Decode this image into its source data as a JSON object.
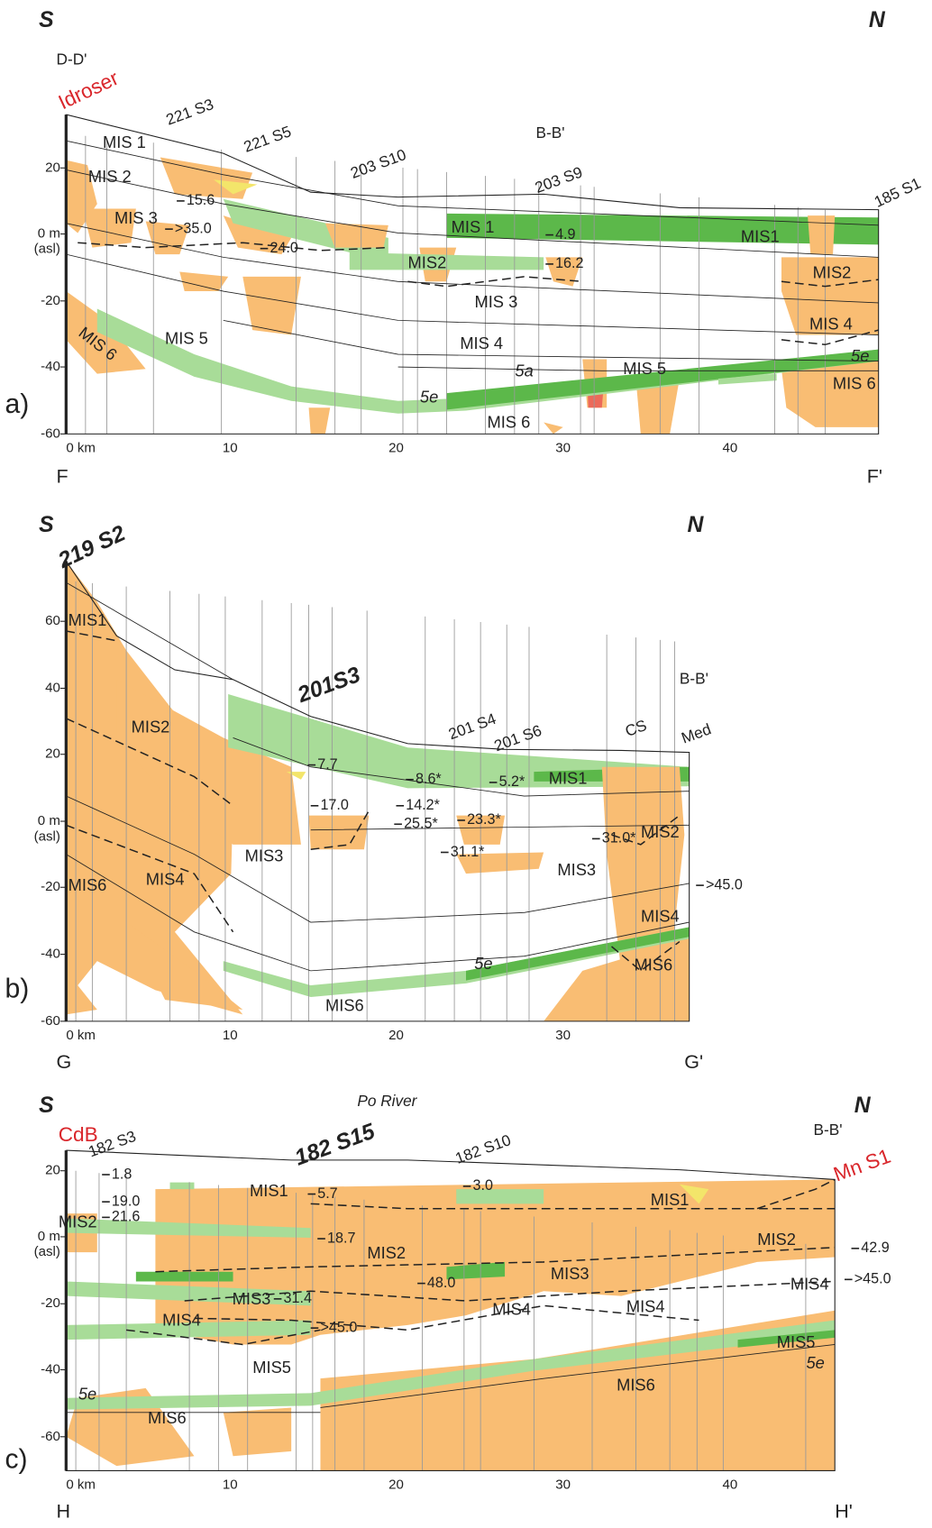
{
  "panels": [
    {
      "panel_label": "a)",
      "left": "S",
      "right": "N",
      "start": "F",
      "end": "F'",
      "y_axis": [
        "20",
        "0 m",
        "-20",
        "-40",
        "-60"
      ],
      "asl": "(asl)",
      "x_axis": [
        "0 km",
        "10",
        "20",
        "30",
        "40"
      ],
      "wells": [
        "D-D'",
        "Idroser",
        "221 S3",
        "221 S5",
        "203 S10",
        "B-B'",
        "203 S9",
        "185 S1"
      ],
      "units": [
        "MIS 1",
        "MIS 2",
        "MIS 3",
        "MIS 1",
        "MIS1",
        "MIS2",
        "MIS2",
        "MIS 3",
        "MIS 4",
        "MIS 5",
        "MIS 4",
        "MIS 6",
        "5a",
        "MIS 5",
        "5e",
        "MIS 6",
        "5e",
        "MIS 6"
      ],
      "depths": [
        "15.6",
        ">35.0",
        "24.0",
        "4.9",
        "16.2"
      ]
    },
    {
      "panel_label": "b)",
      "left": "S",
      "right": "N",
      "start": "G",
      "end": "G'",
      "y_axis": [
        "60",
        "40",
        "20",
        "0 m",
        "-20",
        "-40",
        "-60"
      ],
      "asl": "(asl)",
      "x_axis": [
        "0 km",
        "10",
        "20",
        "30"
      ],
      "wells": [
        "219 S2",
        "201S3",
        "201 S4",
        "201 S6",
        "CS",
        "B-B'",
        "Med"
      ],
      "units": [
        "MIS1",
        "MIS2",
        "MIS1",
        "MIS3",
        "MIS2",
        "MIS3",
        "MIS6",
        "MIS4",
        "MIS4",
        "5e",
        "MIS6",
        "MIS6"
      ],
      "depths": [
        "7.7",
        "17.0",
        "8.6*",
        "5.2*",
        "14.2*",
        "25.5*",
        "23.3*",
        "31.1*",
        "31.0*",
        ">45.0"
      ]
    },
    {
      "panel_label": "c)",
      "left": "S",
      "right": "N",
      "start": "H",
      "end": "H'",
      "y_axis": [
        "20",
        "0 m",
        "-20",
        "-40",
        "-60"
      ],
      "asl": "(asl)",
      "x_axis": [
        "0 km",
        "10",
        "20",
        "30",
        "40"
      ],
      "wells": [
        "CdB",
        "182 S3",
        "Po River",
        "182 S15",
        "182 S10",
        "B-B'",
        "Mn S1"
      ],
      "units": [
        "MIS2",
        "MIS1",
        "MIS1",
        "MIS2",
        "MIS2",
        "MIS3",
        "MIS4",
        "MIS3",
        "MIS4",
        "MIS4",
        "MIS4",
        "MIS5",
        "5e",
        "MIS5",
        "5e",
        "MIS6",
        "MIS6"
      ],
      "depths": [
        "1.8",
        "19.0",
        "21.6",
        "5.7",
        "3.0",
        "18.7",
        "42.9",
        ">45.0",
        "48.0",
        "31.4",
        ">45.0"
      ]
    }
  ]
}
